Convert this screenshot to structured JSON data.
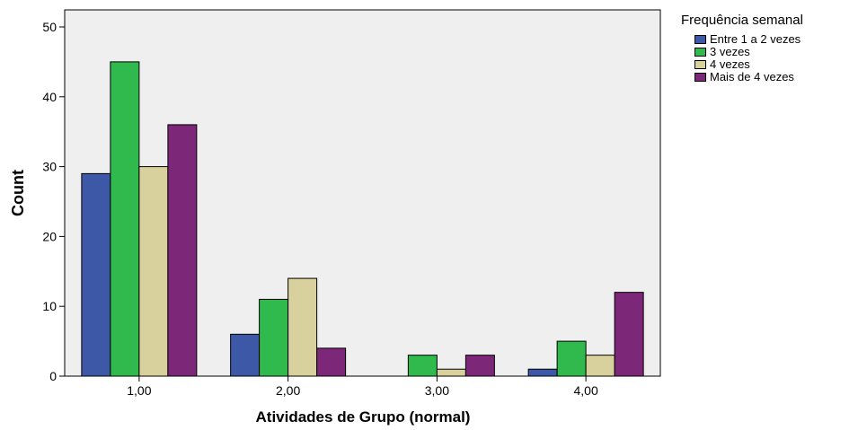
{
  "chart_data": {
    "type": "bar",
    "title": "",
    "xlabel": "Atividades de Grupo (normal)",
    "ylabel": "Count",
    "ylim": [
      0,
      50
    ],
    "yticks": [
      0,
      10,
      20,
      30,
      40,
      50
    ],
    "categories": [
      "1,00",
      "2,00",
      "3,00",
      "4,00"
    ],
    "legend_title": "Frequência semanal",
    "legend_position": "right",
    "grid": false,
    "series": [
      {
        "name": "Entre 1 a 2 vezes",
        "color": "#3D58A6",
        "values": [
          29,
          6,
          0,
          1
        ]
      },
      {
        "name": "3 vezes",
        "color": "#30B94C",
        "values": [
          45,
          11,
          3,
          5
        ]
      },
      {
        "name": "4 vezes",
        "color": "#D8D19D",
        "values": [
          30,
          14,
          1,
          3
        ]
      },
      {
        "name": "Mais de 4 vezes",
        "color": "#7D2779",
        "values": [
          36,
          4,
          3,
          12
        ]
      }
    ]
  }
}
